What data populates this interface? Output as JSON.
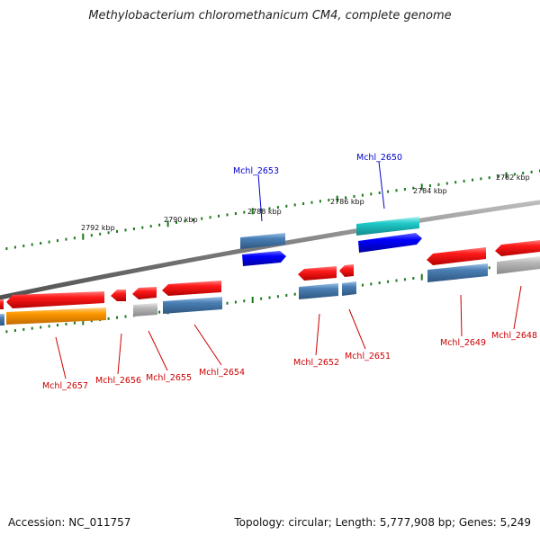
{
  "title": "Methylobacterium chloromethanicum CM4, complete genome",
  "footer": {
    "accession": "Accession: NC_011757",
    "summary": "Topology: circular; Length: 5,777,908 bp; Genes: 5,249"
  },
  "scale_labels": [
    "2792 kbp",
    "2790 kbp",
    "2788 kbp",
    "2786 kbp",
    "2784 kbp",
    "2782 kbp"
  ],
  "genes": [
    {
      "label": "Mchl_2657",
      "color": "#cc0000"
    },
    {
      "label": "Mchl_2656",
      "color": "#cc0000"
    },
    {
      "label": "Mchl_2655",
      "color": "#cc0000"
    },
    {
      "label": "Mchl_2654",
      "color": "#cc0000"
    },
    {
      "label": "Mchl_2653",
      "color": "#0000cc"
    },
    {
      "label": "Mchl_2652",
      "color": "#cc0000"
    },
    {
      "label": "Mchl_2651",
      "color": "#cc0000"
    },
    {
      "label": "Mchl_2650",
      "color": "#0000cc"
    },
    {
      "label": "Mchl_2649",
      "color": "#cc0000"
    },
    {
      "label": "Mchl_2648",
      "color": "#cc0000"
    }
  ],
  "colors": {
    "backbone": "#808080",
    "tick": "#1a7a1a",
    "red_cds": "#ff1a1a",
    "blue_cds": "#0000ff",
    "steel_feature": "#4a7fb5",
    "cyan_feature": "#1fc9c9",
    "orange_feature": "#ff9900",
    "gray_feature": "#b0b0b0"
  }
}
